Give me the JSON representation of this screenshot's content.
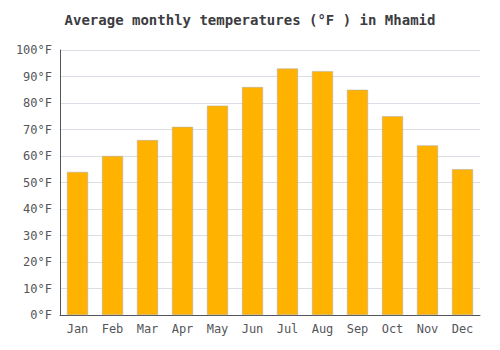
{
  "chart_data": {
    "type": "bar",
    "title": "Average monthly temperatures (°F ) in Mhamid",
    "categories": [
      "Jan",
      "Feb",
      "Mar",
      "Apr",
      "May",
      "Jun",
      "Jul",
      "Aug",
      "Sep",
      "Oct",
      "Nov",
      "Dec"
    ],
    "values": [
      54,
      60,
      66,
      71,
      79,
      86,
      93,
      92,
      85,
      75,
      64,
      55
    ],
    "color": "#FFB300",
    "ylim": [
      0,
      100
    ],
    "yticks": [
      {
        "value": 0,
        "label": "0°F"
      },
      {
        "value": 10,
        "label": "10°F"
      },
      {
        "value": 20,
        "label": "20°F"
      },
      {
        "value": 30,
        "label": "30°F"
      },
      {
        "value": 40,
        "label": "40°F"
      },
      {
        "value": 50,
        "label": "50°F"
      },
      {
        "value": 60,
        "label": "60°F"
      },
      {
        "value": 70,
        "label": "70°F"
      },
      {
        "value": 80,
        "label": "80°F"
      },
      {
        "value": 90,
        "label": "90°F"
      },
      {
        "value": 100,
        "label": "100°F"
      }
    ],
    "grid": true
  }
}
